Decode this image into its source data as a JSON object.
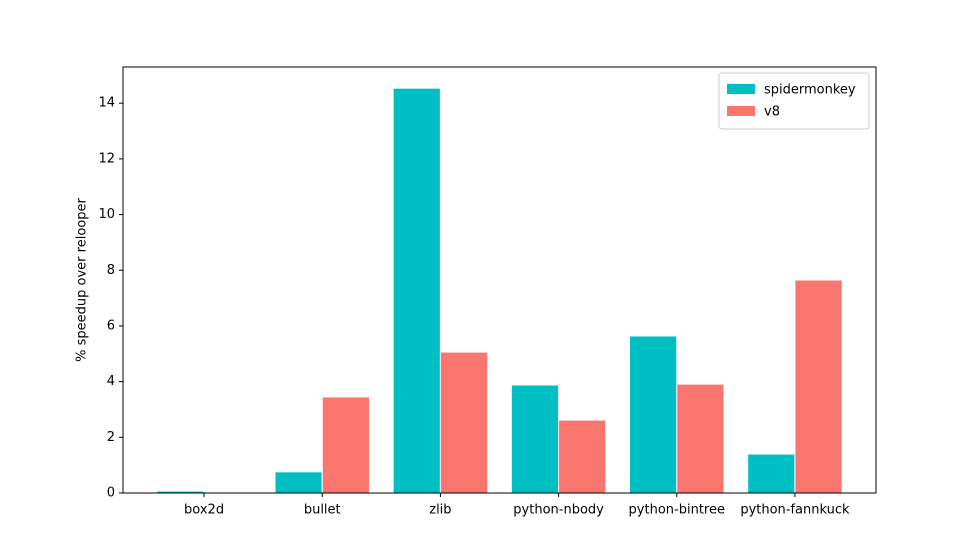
{
  "chart_data": {
    "type": "bar",
    "y_label": "% speedup over relooper",
    "categories": [
      "box2d",
      "bullet",
      "zlib",
      "python-nbody",
      "python-bintree",
      "python-fannkuck"
    ],
    "series": [
      {
        "name": "spidermonkey",
        "color": "#00bfc4",
        "values": [
          0.07,
          0.76,
          14.54,
          3.88,
          5.64,
          1.4
        ]
      },
      {
        "name": "v8",
        "color": "#f8766d",
        "values": [
          0,
          3.45,
          5.06,
          2.62,
          3.91,
          7.65
        ]
      }
    ],
    "ylim": [
      0,
      15.3
    ],
    "yticks": [
      0,
      2,
      4,
      6,
      8,
      10,
      12,
      14
    ],
    "legend": "upper right"
  }
}
